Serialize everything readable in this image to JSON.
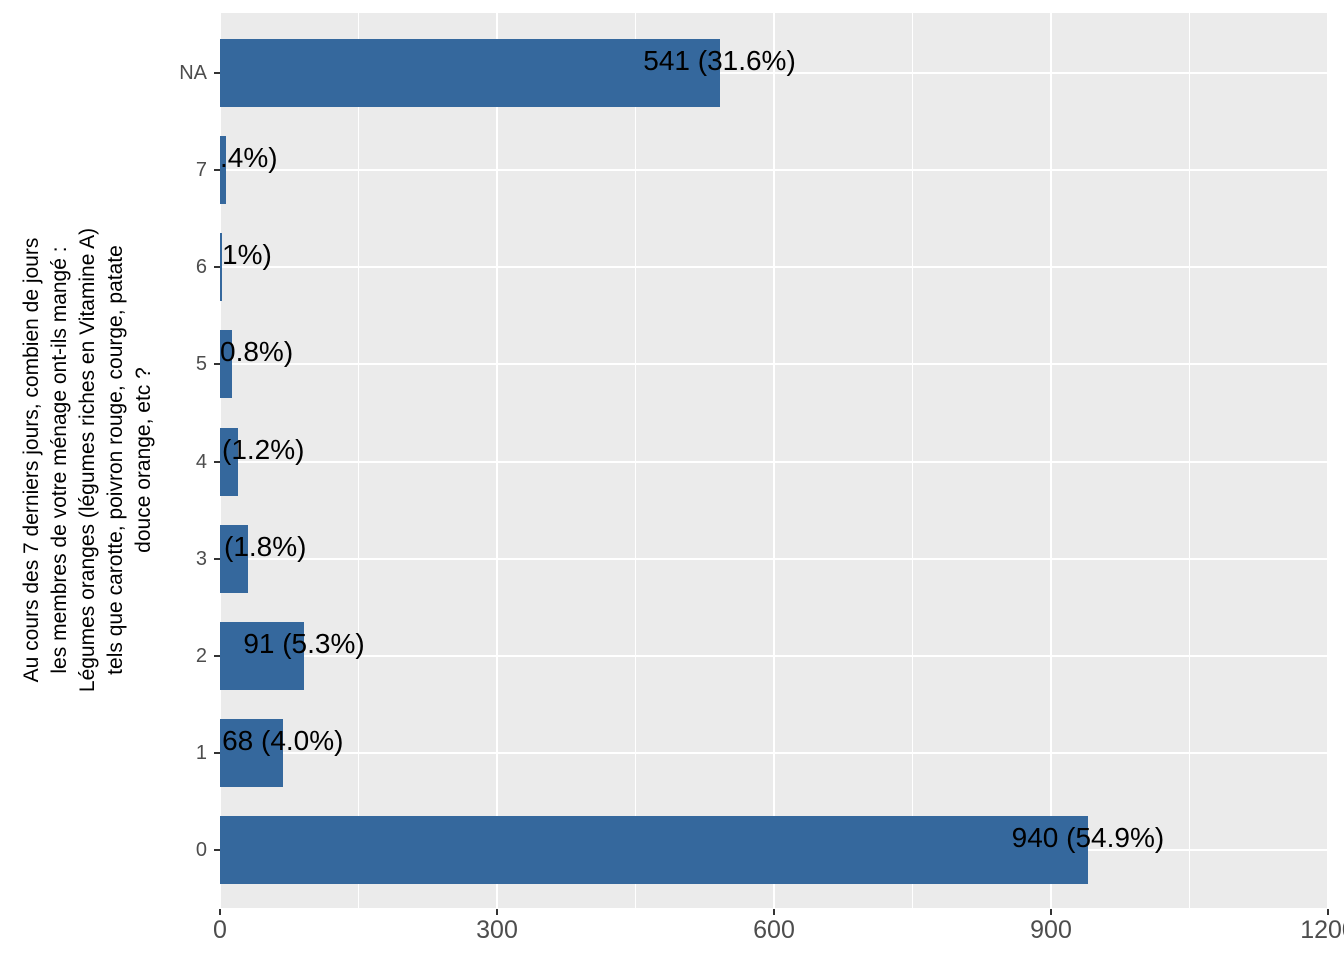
{
  "colors": {
    "bar": "#35689D",
    "panel_bg": "#EBEBEB",
    "grid": "#FFFFFF",
    "axis_text": "#4D4D4D",
    "tick_marks": "#333333",
    "label_text": "#000000",
    "background": "#FFFFFF"
  },
  "chart_data": {
    "type": "bar",
    "orientation": "horizontal",
    "title": "",
    "xlabel": "",
    "ylabel": "Au cours des 7 derniers jours, combien de jours\nles membres de votre ménage ont-ils mangé :\nLégumes oranges (légumes riches en Vitamine A)\ntels que carotte, poivron rouge, courge, patate\ndouce orange, etc ?",
    "categories": [
      "NA",
      "7",
      "6",
      "5",
      "4",
      "3",
      "2",
      "1",
      "0"
    ],
    "values": [
      541,
      7,
      2,
      13,
      20,
      30,
      91,
      68,
      940
    ],
    "bar_labels": [
      "541 (31.6%)",
      ".4%)",
      "1%)",
      "0.8%)",
      "(1.2%)",
      "(1.8%)",
      "91 (5.3%)",
      "68 (4.0%)",
      "940 (54.9%)"
    ],
    "bar_label_modes": [
      "center",
      "edge",
      "edge",
      "edge",
      "edge",
      "edge",
      "center",
      "center",
      "center"
    ],
    "bar_label_offsets": [
      0,
      0,
      2,
      0,
      2,
      4,
      0,
      0,
      0
    ],
    "xlim": [
      0,
      1200
    ],
    "x_ticks": [
      0,
      300,
      600,
      900,
      1200
    ],
    "x_tick_labels": [
      "0",
      "300",
      "600",
      "900",
      "1200"
    ],
    "x_minor_ticks": [
      150,
      450,
      750,
      1050
    ],
    "grid": true,
    "legend": false
  }
}
